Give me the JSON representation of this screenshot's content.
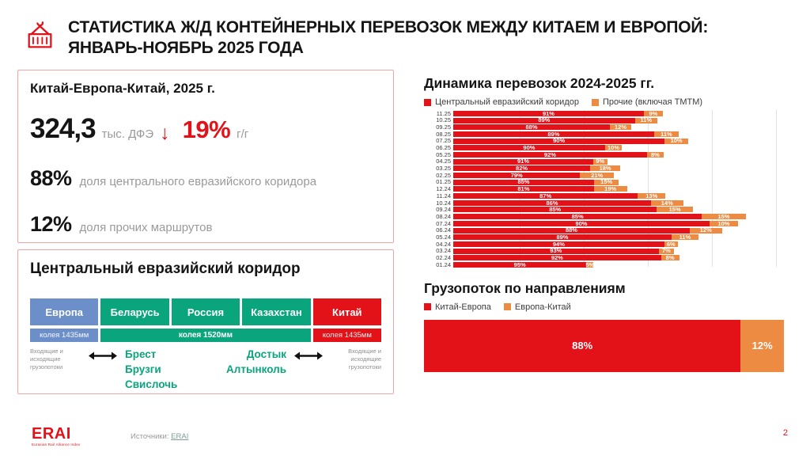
{
  "colors": {
    "red": "#e31118",
    "orange": "#ee8b43",
    "blue": "#6d8fc9",
    "green": "#0ba57d",
    "grid": "#e2e2e2",
    "panel_border": "#f2a5a5",
    "link": "#7d9d96"
  },
  "header": {
    "icon": "container-crane-icon",
    "title_line1": "СТАТИСТИКА Ж/Д КОНТЕЙНЕРНЫХ ПЕРЕВОЗОК МЕЖДУ КИТАЕМ И ЕВРОПОЙ:",
    "title_line2": "ЯНВАРЬ-НОЯБРЬ 2025 ГОДА"
  },
  "stats_panel": {
    "title": "Китай-Европа-Китай, 2025 г.",
    "volume_value": "324,3",
    "volume_unit": "тыс. ДФЭ",
    "trend_arrow": "↓",
    "trend_value": "19%",
    "trend_suffix": "г/г",
    "shares": [
      {
        "value": "88%",
        "label": "доля центрального евразийского коридора"
      },
      {
        "value": "12%",
        "label": "доля прочих маршрутов"
      }
    ]
  },
  "corridor_panel": {
    "title": "Центральный евразийский коридор",
    "countries": [
      {
        "name": "Европа",
        "color": "#6d8fc9"
      },
      {
        "name": "Беларусь",
        "color": "#0ba57d"
      },
      {
        "name": "Россия",
        "color": "#0ba57d"
      },
      {
        "name": "Казахстан",
        "color": "#0ba57d"
      },
      {
        "name": "Китай",
        "color": "#e31118"
      }
    ],
    "gauges": [
      {
        "label": "колея 1435мм",
        "color": "#6d8fc9",
        "span": 1,
        "bold": false
      },
      {
        "label": "колея 1520мм",
        "color": "#0ba57d",
        "span": 3,
        "bold": true
      },
      {
        "label": "колея 1435мм",
        "color": "#e31118",
        "span": 1,
        "bold": false
      }
    ],
    "west_flow_label": "Входящие и исходящие грузопотоки",
    "west_stations": [
      "Брест",
      "Брузги",
      "Свислочь"
    ],
    "east_stations": [
      "Достык",
      "Алтынколь"
    ],
    "east_flow_label": "Входящие и исходящие грузопотоки"
  },
  "chart_data": [
    {
      "id": "dynamics",
      "type": "bar",
      "subtype": "horizontal-stacked",
      "title": "Динамика перевозок 2024-2025 гг.",
      "legend_position": "top",
      "grid": true,
      "legend": [
        {
          "name": "Центральный евразийский коридор",
          "color": "#e31118"
        },
        {
          "name": "Прочие (включая ТМТМ)",
          "color": "#ee8b43"
        }
      ],
      "categories": [
        "11.25",
        "10.25",
        "09.25",
        "08.25",
        "07.25",
        "06.25",
        "05.25",
        "04.25",
        "03.25",
        "02.25",
        "01.25",
        "12.24",
        "11.24",
        "10.24",
        "09.24",
        "08.24",
        "07.24",
        "06.24",
        "05.24",
        "04.24",
        "03.24",
        "02.24",
        "01.24"
      ],
      "series": [
        {
          "name": "Центральный евразийский коридор",
          "unit": "%",
          "values": [
            91,
            89,
            88,
            89,
            90,
            90,
            92,
            91,
            82,
            79,
            85,
            81,
            87,
            86,
            85,
            85,
            90,
            88,
            89,
            94,
            93,
            92,
            95
          ]
        },
        {
          "name": "Прочие (включая ТМТМ)",
          "unit": "%",
          "values": [
            9,
            11,
            12,
            11,
            10,
            10,
            8,
            9,
            18,
            21,
            15,
            19,
            13,
            14,
            15,
            15,
            10,
            12,
            11,
            6,
            7,
            8,
            5
          ]
        }
      ],
      "bar_total_pct_of_plot": [
        62.6,
        61.0,
        53.2,
        67.4,
        70.2,
        50.4,
        62.9,
        46.0,
        49.9,
        48.0,
        49.5,
        51.9,
        63.4,
        68.7,
        71.6,
        87.4,
        85.1,
        80.3,
        73.3,
        67.1,
        66.0,
        67.5,
        41.9
      ],
      "gridlines_pct": [
        19.3,
        38.6,
        57.8,
        77.1,
        96.4
      ]
    },
    {
      "id": "directions",
      "type": "bar",
      "subtype": "horizontal-stacked",
      "title": "Грузопоток по направлениям",
      "legend": [
        {
          "name": "Китай-Европа",
          "color": "#e31118"
        },
        {
          "name": "Европа-Китай",
          "color": "#ee8b43"
        }
      ],
      "segments": [
        {
          "name": "Китай-Европа",
          "value": 88,
          "label": "88%",
          "color": "#e31118"
        },
        {
          "name": "Европа-Китай",
          "value": 12,
          "label": "12%",
          "color": "#ee8b43"
        }
      ]
    }
  ],
  "footer": {
    "logo_text": "ERAI",
    "logo_subtext": "Eurasian Rail Alliance Index",
    "sources_label": "Источники:",
    "sources_link": "ERAI",
    "page_number": "2"
  }
}
